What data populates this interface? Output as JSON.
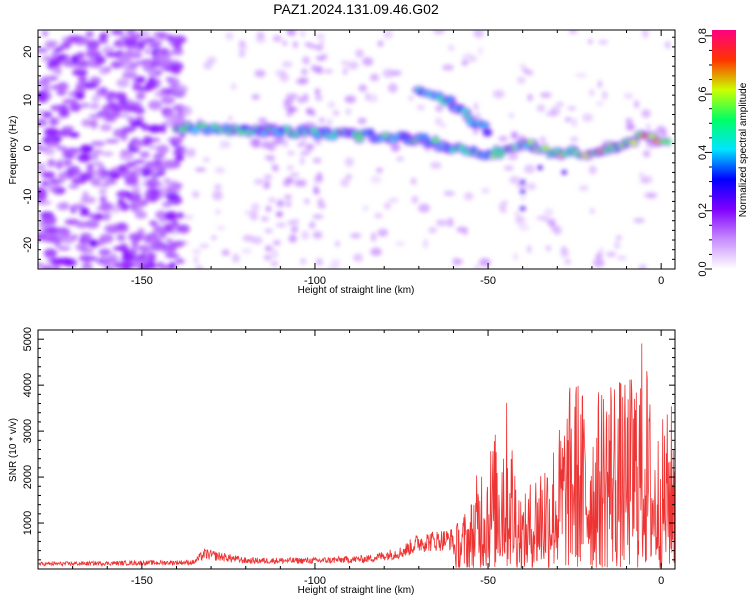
{
  "title": "PAZ1.2024.131.09.46.G02",
  "chart_data": [
    {
      "type": "heatmap",
      "xlabel": "Height of straight line (km)",
      "ylabel": "Frequency (Hz)",
      "xlim": [
        -180,
        4
      ],
      "ylim": [
        -25,
        24.5
      ],
      "xticks": [
        -150,
        -100,
        -50,
        0
      ],
      "yticks": [
        -20,
        -10,
        0,
        10,
        20
      ],
      "colorbar": {
        "label": "Normalized spectral amplitude",
        "range": [
          0,
          0.82
        ],
        "ticks": [
          0.0,
          0.2,
          0.4,
          0.6,
          0.8
        ],
        "colors": [
          "#ffffff",
          "#c78cff",
          "#8000ff",
          "#0000ff",
          "#00e5ff",
          "#00ff66",
          "#ccff00",
          "#ff3300",
          "#ff0080"
        ]
      },
      "ridges": [
        {
          "name": "main",
          "points": [
            [
              -140,
              4.5
            ],
            [
              -125,
              4
            ],
            [
              -110,
              3.5
            ],
            [
              -95,
              3
            ],
            [
              -80,
              2.5
            ],
            [
              -70,
              2
            ],
            [
              -60,
              0
            ],
            [
              -50,
              -1.5
            ],
            [
              -45,
              -0.5
            ],
            [
              -40,
              1
            ],
            [
              -30,
              -1
            ],
            [
              -20,
              -1
            ],
            [
              -10,
              1
            ],
            [
              -5,
              3
            ],
            [
              2,
              1.5
            ]
          ]
        },
        {
          "name": "upper",
          "points": [
            [
              -70,
              12.5
            ],
            [
              -62,
              10
            ],
            [
              -55,
              6
            ],
            [
              -50,
              3.5
            ]
          ]
        }
      ]
    },
    {
      "type": "line",
      "xlabel": "Height of straight line (km)",
      "ylabel": "SNR (10 * v/v)",
      "xlim": [
        -180,
        4
      ],
      "ylim": [
        0,
        5200
      ],
      "xticks": [
        -150,
        -100,
        -50,
        0
      ],
      "yticks": [
        1000,
        2000,
        3000,
        4000,
        5000
      ],
      "color": "#ee3333",
      "envelope": [
        [
          -180,
          150
        ],
        [
          -135,
          200
        ],
        [
          -132,
          450
        ],
        [
          -120,
          250
        ],
        [
          -100,
          250
        ],
        [
          -85,
          300
        ],
        [
          -75,
          500
        ],
        [
          -70,
          800
        ],
        [
          -60,
          900
        ],
        [
          -55,
          1500
        ],
        [
          -52,
          2500
        ],
        [
          -48,
          3000
        ],
        [
          -45,
          3900
        ],
        [
          -40,
          1500
        ],
        [
          -35,
          2500
        ],
        [
          -30,
          3000
        ],
        [
          -25,
          4400
        ],
        [
          -20,
          3500
        ],
        [
          -15,
          4600
        ],
        [
          -10,
          4000
        ],
        [
          -5,
          5200
        ],
        [
          -2,
          3000
        ],
        [
          2,
          3500
        ],
        [
          4,
          3800
        ]
      ]
    }
  ]
}
